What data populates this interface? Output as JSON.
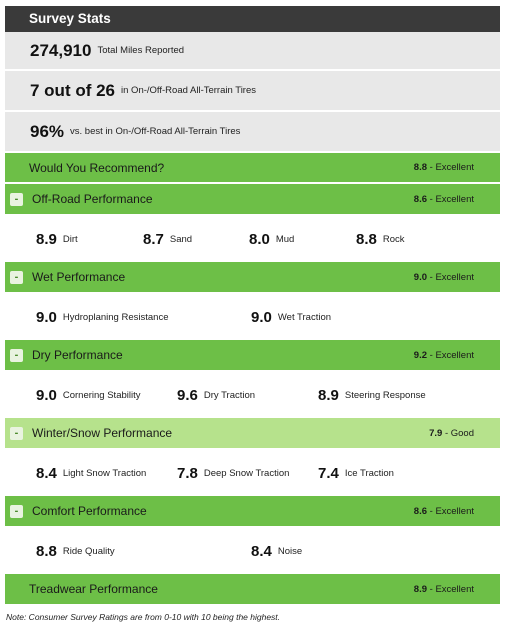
{
  "header": {
    "title": "Survey Stats"
  },
  "stats": [
    {
      "value": "274,910",
      "label": "Total Miles Reported"
    },
    {
      "value": "7 out of 26",
      "label": "in On-/Off-Road All-Terrain Tires"
    },
    {
      "value": "96%",
      "label": "vs. best in On-/Off-Road All-Terrain Tires"
    }
  ],
  "recommend": {
    "name": "Would You Recommend?",
    "score": "8.8",
    "rating": " - Excellent"
  },
  "categories": [
    {
      "name": "Off-Road Performance",
      "score": "8.6",
      "rating": " - Excellent",
      "toggle": "-",
      "metrics": [
        {
          "value": "8.9",
          "label": "Dirt"
        },
        {
          "value": "8.7",
          "label": "Sand"
        },
        {
          "value": "8.0",
          "label": "Mud"
        },
        {
          "value": "8.8",
          "label": "Rock"
        }
      ]
    },
    {
      "name": "Wet Performance",
      "score": "9.0",
      "rating": " - Excellent",
      "toggle": "-",
      "metrics": [
        {
          "value": "9.0",
          "label": "Hydroplaning Resistance"
        },
        {
          "value": "9.0",
          "label": "Wet Traction"
        }
      ]
    },
    {
      "name": "Dry Performance",
      "score": "9.2",
      "rating": " - Excellent",
      "toggle": "-",
      "metrics": [
        {
          "value": "9.0",
          "label": "Cornering Stability"
        },
        {
          "value": "9.6",
          "label": "Dry Traction"
        },
        {
          "value": "8.9",
          "label": "Steering Response"
        }
      ]
    },
    {
      "name": "Winter/Snow Performance",
      "score": "7.9",
      "rating": " - Good",
      "toggle": "-",
      "metrics": [
        {
          "value": "8.4",
          "label": "Light Snow Traction"
        },
        {
          "value": "7.8",
          "label": "Deep Snow Traction"
        },
        {
          "value": "7.4",
          "label": "Ice Traction"
        }
      ]
    },
    {
      "name": "Comfort Performance",
      "score": "8.6",
      "rating": " - Excellent",
      "toggle": "-",
      "metrics": [
        {
          "value": "8.8",
          "label": "Ride Quality"
        },
        {
          "value": "8.4",
          "label": "Noise"
        }
      ]
    }
  ],
  "treadwear": {
    "name": "Treadwear Performance",
    "score": "8.9",
    "rating": " - Excellent"
  },
  "note": "Note: Consumer Survey Ratings are from 0-10 with 10 being the highest.",
  "colors": {
    "header": "#3a3a3a",
    "stat_bg": "#e8e8e8",
    "green": "#6dbf47",
    "light_green": "#b6e28c"
  }
}
